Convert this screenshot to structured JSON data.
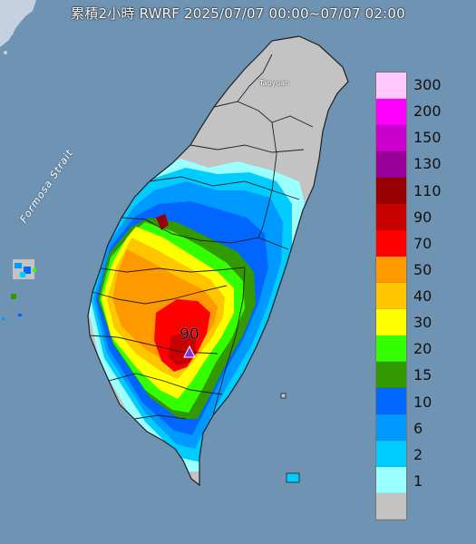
{
  "title": "累積2小時 RWRF 2025/07/07 00:00~07/07 02:00",
  "strait_label": "Formosa Strait",
  "city_label": "Taoyuan",
  "max_marker": {
    "value": "90",
    "icon": "triangle-marker-icon"
  },
  "colors": {
    "sea": "#6f93b2",
    "land": "#c3c3c3",
    "boundary": "#202020"
  },
  "legend": [
    {
      "label": "300",
      "color": "#fec8fc"
    },
    {
      "label": "200",
      "color": "#ff00ff"
    },
    {
      "label": "150",
      "color": "#cc00cc"
    },
    {
      "label": "130",
      "color": "#990099"
    },
    {
      "label": "110",
      "color": "#960000"
    },
    {
      "label": "90",
      "color": "#c80000"
    },
    {
      "label": "70",
      "color": "#ff0000"
    },
    {
      "label": "50",
      "color": "#ff9900"
    },
    {
      "label": "40",
      "color": "#ffc600"
    },
    {
      "label": "30",
      "color": "#ffff00"
    },
    {
      "label": "20",
      "color": "#33ff00"
    },
    {
      "label": "15",
      "color": "#339900"
    },
    {
      "label": "10",
      "color": "#0066ff"
    },
    {
      "label": "6",
      "color": "#0099ff"
    },
    {
      "label": "2",
      "color": "#00ccff"
    },
    {
      "label": "1",
      "color": "#9bfeff"
    },
    {
      "label": "",
      "color": "#c3c3c3"
    }
  ]
}
